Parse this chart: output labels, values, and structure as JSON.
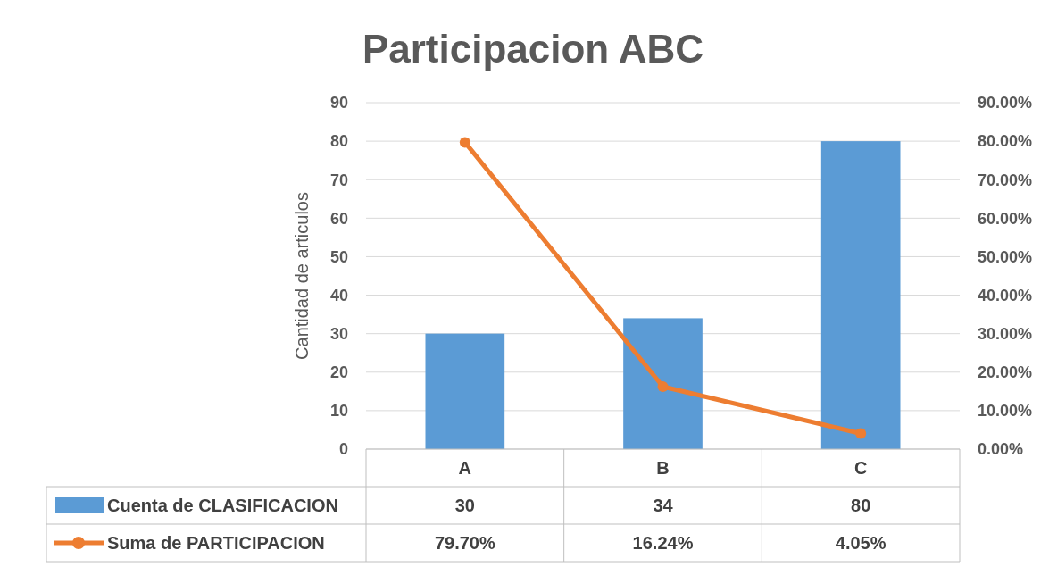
{
  "chart_data": {
    "type": "bar",
    "title": "Participacion ABC",
    "ylabel": "Cantidad de articulos",
    "categories": [
      "A",
      "B",
      "C"
    ],
    "series": [
      {
        "name": "Cuenta de CLASIFICACION",
        "color": "#5b9bd5",
        "values": [
          30,
          34,
          80
        ],
        "value_labels": [
          "30",
          "34",
          "80"
        ]
      },
      {
        "name": "Suma de PARTICIPACION",
        "type": "line",
        "axis": "y2",
        "color": "#ed7d31",
        "values": [
          79.7,
          16.24,
          4.05
        ],
        "value_labels": [
          "79.70%",
          "16.24%",
          "4.05%"
        ]
      }
    ],
    "ylim": [
      0,
      90
    ],
    "yticks": [
      0,
      10,
      20,
      30,
      40,
      50,
      60,
      70,
      80,
      90
    ],
    "y2lim": [
      0,
      90
    ],
    "y2ticks": [
      {
        "value": 0,
        "label": "0.00%"
      },
      {
        "value": 10,
        "label": "10.00%"
      },
      {
        "value": 20,
        "label": "20.00%"
      },
      {
        "value": 30,
        "label": "30.00%"
      },
      {
        "value": 40,
        "label": "40.00%"
      },
      {
        "value": 50,
        "label": "50.00%"
      },
      {
        "value": 60,
        "label": "60.00%"
      },
      {
        "value": 70,
        "label": "70.00%"
      },
      {
        "value": 80,
        "label": "80.00%"
      },
      {
        "value": 90,
        "label": "90.00%"
      }
    ],
    "grid": "y",
    "legend": "bottom",
    "marker": "circle",
    "line_style": "solid"
  }
}
